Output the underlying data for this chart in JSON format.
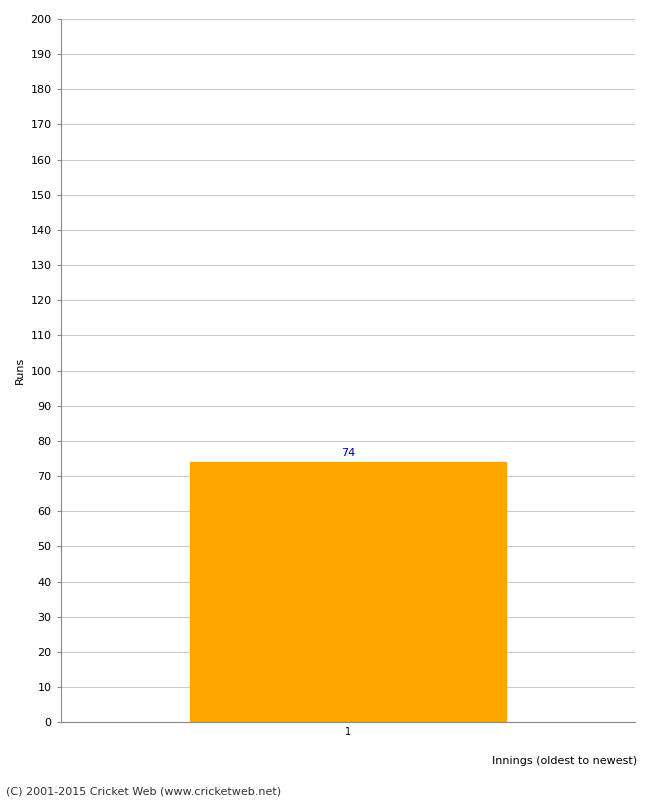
{
  "categories": [
    1
  ],
  "values": [
    74
  ],
  "bar_color": "#FFA500",
  "bar_edge_color": "#FFA500",
  "ylabel": "Runs",
  "xlabel": "Innings (oldest to newest)",
  "ylim": [
    0,
    200
  ],
  "yticks": [
    0,
    10,
    20,
    30,
    40,
    50,
    60,
    70,
    80,
    90,
    100,
    110,
    120,
    130,
    140,
    150,
    160,
    170,
    180,
    190,
    200
  ],
  "annotation_color": "#00008B",
  "annotation_fontsize": 8,
  "footer": "(C) 2001-2015 Cricket Web (www.cricketweb.net)",
  "background_color": "#ffffff",
  "grid_color": "#c8c8c8",
  "tick_label": "1",
  "ylabel_fontsize": 8,
  "xlabel_fontsize": 8,
  "ytick_fontsize": 8,
  "footer_fontsize": 8
}
